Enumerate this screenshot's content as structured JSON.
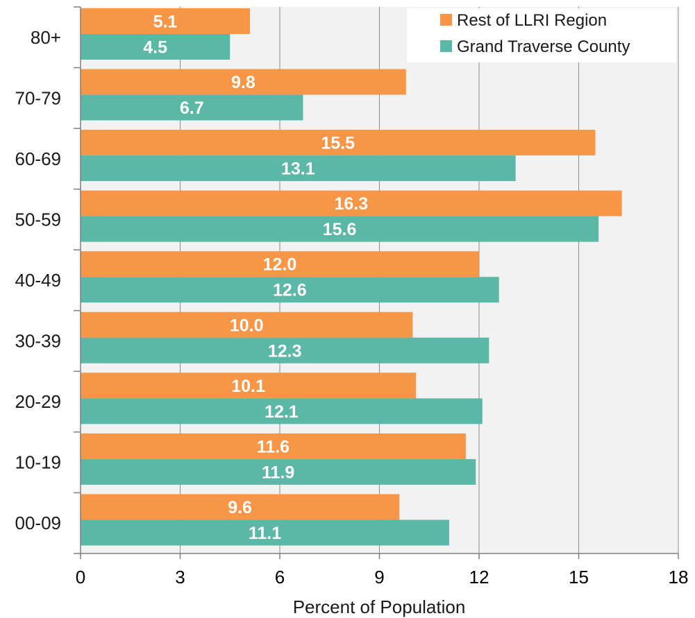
{
  "chart_data": {
    "type": "bar",
    "orientation": "horizontal",
    "title": "",
    "xlabel": "Percent of Population",
    "ylabel": "",
    "xlim": [
      0,
      18
    ],
    "xticks": [
      "0",
      "3",
      "6",
      "9",
      "12",
      "15",
      "18"
    ],
    "grid": true,
    "legend_position": "top-right",
    "categories": [
      "80+",
      "70-79",
      "60-69",
      "50-59",
      "40-49",
      "30-39",
      "20-29",
      "10-19",
      "00-09"
    ],
    "series": [
      {
        "name": "Rest of LLRI Region",
        "color": "#f79646",
        "values": [
          5.1,
          9.8,
          15.5,
          16.3,
          12.0,
          10.0,
          10.1,
          11.6,
          9.6
        ],
        "labels": [
          "5.1",
          "9.8",
          "15.5",
          "16.3",
          "12.0",
          "10.0",
          "10.1",
          "11.6",
          "9.6"
        ]
      },
      {
        "name": "Grand Traverse County",
        "color": "#5bb8a6",
        "values": [
          4.5,
          6.7,
          13.1,
          15.6,
          12.6,
          12.3,
          12.1,
          11.9,
          11.1
        ],
        "labels": [
          "4.5",
          "6.7",
          "13.1",
          "15.6",
          "12.6",
          "12.3",
          "12.1",
          "11.9",
          "11.1"
        ]
      }
    ],
    "colors": {
      "plot_background": "#f2f2f2",
      "gridline": "#8c8c8c",
      "axis": "#7f7f7f"
    }
  }
}
